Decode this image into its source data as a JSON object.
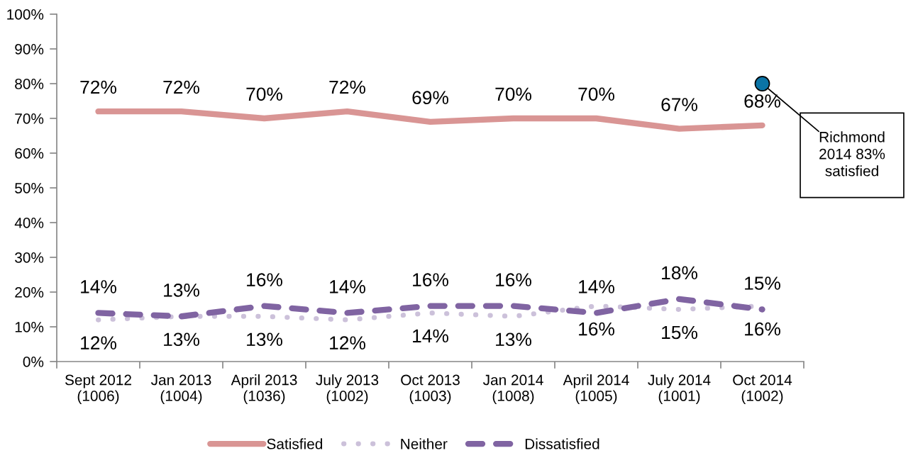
{
  "chart_data": {
    "type": "line",
    "categories": [
      "Sept 2012\n(1006)",
      "Jan 2013\n(1004)",
      "April 2013\n(1036)",
      "July 2013\n(1002)",
      "Oct 2013\n(1003)",
      "Jan 2014\n(1008)",
      "April 2014\n(1005)",
      "July 2014\n(1001)",
      "Oct 2014\n(1002)"
    ],
    "series": [
      {
        "name": "Satisfied",
        "color": "#d99594",
        "line_style": "solid",
        "values": [
          72,
          72,
          70,
          72,
          69,
          70,
          70,
          67,
          68
        ],
        "value_labels": [
          "72%",
          "72%",
          "70%",
          "72%",
          "69%",
          "70%",
          "70%",
          "67%",
          "68%"
        ]
      },
      {
        "name": "Neither",
        "color": "#ccc1da",
        "line_style": "dotted",
        "values": [
          12,
          13,
          13,
          12,
          14,
          13,
          16,
          15,
          16
        ],
        "value_labels": [
          "12%",
          "13%",
          "13%",
          "12%",
          "14%",
          "13%",
          "16%",
          "15%",
          "16%"
        ]
      },
      {
        "name": "Dissatisfied",
        "color": "#8064a2",
        "line_style": "dashed",
        "values": [
          14,
          13,
          16,
          14,
          16,
          16,
          14,
          18,
          15
        ],
        "value_labels": [
          "14%",
          "13%",
          "16%",
          "14%",
          "16%",
          "16%",
          "14%",
          "18%",
          "15%"
        ]
      },
      {
        "type": "scatter",
        "color": "#0b74a6",
        "marker": "circle",
        "values": [
          null,
          null,
          null,
          null,
          null,
          null,
          null,
          null,
          80
        ]
      }
    ],
    "ylim": [
      0,
      100
    ],
    "yticks": [
      {
        "value": 0,
        "label": "0%"
      },
      {
        "value": 10,
        "label": "10%"
      },
      {
        "value": 20,
        "label": "20%"
      },
      {
        "value": 30,
        "label": "30%"
      },
      {
        "value": 40,
        "label": "40%"
      },
      {
        "value": 50,
        "label": "50%"
      },
      {
        "value": 60,
        "label": "60%"
      },
      {
        "value": 70,
        "label": "70%"
      },
      {
        "value": 80,
        "label": "80%"
      },
      {
        "value": 90,
        "label": "90%"
      },
      {
        "value": 100,
        "label": "100%"
      }
    ],
    "annotations": [
      {
        "text": "Richmond\n2014 83%\nsatisfied",
        "x": "Oct 2014\n(1002)",
        "y": 80
      }
    ],
    "legend": "bottom"
  }
}
